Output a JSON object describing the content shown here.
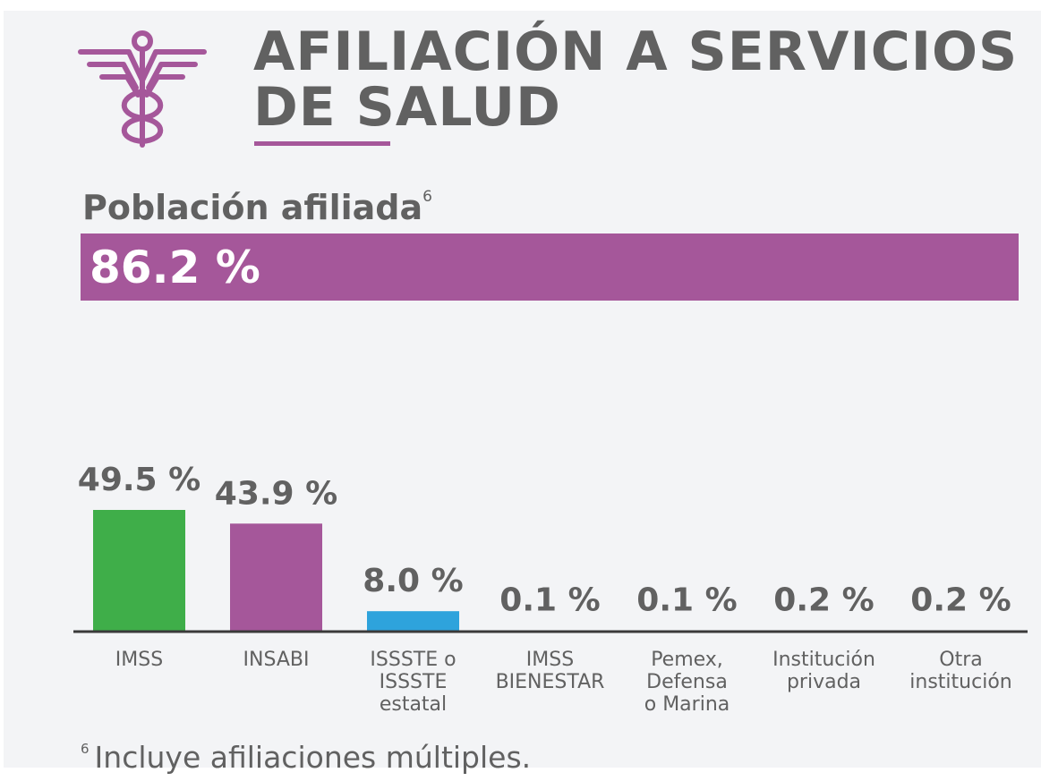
{
  "header": {
    "title_line1": "AFILIACIÓN A SERVICIOS",
    "title_line2": "DE SALUD",
    "icon": "caduceus-icon",
    "accent_color": "#a5579a"
  },
  "summary": {
    "label": "Población afiliada",
    "label_footnote_mark": "6",
    "value_text": "86.2 %",
    "value": 86.2,
    "bar_color": "#a5579a"
  },
  "chart_data": {
    "type": "bar",
    "categories": [
      [
        "IMSS"
      ],
      [
        "INSABI"
      ],
      [
        "ISSSTE o",
        "ISSSTE",
        "estatal"
      ],
      [
        "IMSS",
        "BIENESTAR"
      ],
      [
        "Pemex,",
        "Defensa",
        "o Marina"
      ],
      [
        "Institución",
        "privada"
      ],
      [
        "Otra",
        "institución"
      ]
    ],
    "values": [
      49.5,
      43.9,
      8.0,
      0.1,
      0.1,
      0.2,
      0.2
    ],
    "value_labels": [
      "49.5 %",
      "43.9 %",
      "8.0 %",
      "0.1 %",
      "0.1 %",
      "0.2 %",
      "0.2 %"
    ],
    "colors": [
      "#3fae49",
      "#a5579a",
      "#2ea3dc",
      "#a5579a",
      "#a5579a",
      "#a5579a",
      "#a5579a"
    ],
    "unit": "%",
    "ylim": [
      0,
      100
    ],
    "grid": false,
    "legend": "none"
  },
  "footnote": {
    "mark": "6",
    "text": "Incluye afiliaciones múltiples."
  }
}
